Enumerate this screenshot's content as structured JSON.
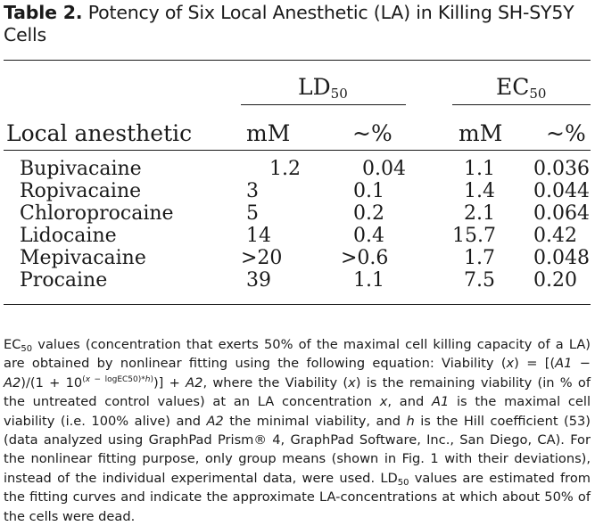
{
  "caption": {
    "label": "Table 2.",
    "text": "Potency of Six Local Anesthetic (LA) in Killing SH-SY5Y Cells"
  },
  "header": {
    "ld_main": "LD",
    "ld_sub": "50",
    "ec_main": "EC",
    "ec_sub": "50",
    "row_label": "Local anesthetic",
    "ld_mm": "mM",
    "ld_pct": "~%",
    "ec_mm": "mM",
    "ec_pct": "~%"
  },
  "rows": [
    {
      "name": "Bupivacaine",
      "ld_mm": "1.2",
      "ld_pct": "0.04",
      "ec_mm": "1.1",
      "ec_pct": "0.036"
    },
    {
      "name": "Ropivacaine",
      "ld_mm": "3",
      "ld_pct": "0.1",
      "ec_mm": "1.4",
      "ec_pct": "0.044"
    },
    {
      "name": "Chloroprocaine",
      "ld_mm": "5",
      "ld_pct": "0.2",
      "ec_mm": "2.1",
      "ec_pct": "0.064"
    },
    {
      "name": "Lidocaine",
      "ld_mm": "14",
      "ld_pct": "0.4",
      "ec_mm": "15.7",
      "ec_pct": "0.42"
    },
    {
      "name": "Mepivacaine",
      "ld_mm": ">20",
      "ld_pct": ">0.6",
      "ec_mm": "1.7",
      "ec_pct": "0.048"
    },
    {
      "name": "Procaine",
      "ld_mm": "39",
      "ld_pct": "1.1",
      "ec_mm": "7.5",
      "ec_pct": "0.20"
    }
  ],
  "footnote": {
    "ec_main": "EC",
    "ec_sub": "50",
    "p1": " values (concentration that exerts 50% of the maximal cell killing capacity of a LA) are obtained by nonlinear fitting using the following equation: Viability (",
    "x1": "x",
    "p2": ") = [(",
    "a1_1": "A1",
    "p3": " − ",
    "a2_1": "A2",
    "p4": ")/(1 + 10",
    "sup_a": "(",
    "sup_x": "x",
    "sup_b": " − logEC50)*",
    "sup_h": "h",
    "sup_c": ")",
    "p5": ")] + ",
    "a2_2": "A2",
    "p6": ", where the Viability (",
    "x2": "x",
    "p7": ") is the remaining viability (in % of the untreated control values) at an LA concentration ",
    "x3": "x",
    "p8": ", and ",
    "a1_2": "A1",
    "p9": " is the maximal cell viability (i.e. 100% alive) and ",
    "a2_3": "A2",
    "p10": " the minimal viability, and ",
    "h": "h",
    "p11": " is the Hill coefficient (53) (data analyzed using GraphPad Prism® 4, GraphPad Software, Inc., San Diego, CA). For the nonlinear fitting purpose, only group means (shown in Fig. 1 with their deviations), instead of the individual experimental data, were used. ",
    "ld_main": "LD",
    "ld_sub": "50",
    "p12": " values are estimated from the fitting curves and indicate the approximate LA-concentrations at which about 50% of the cells were dead."
  }
}
